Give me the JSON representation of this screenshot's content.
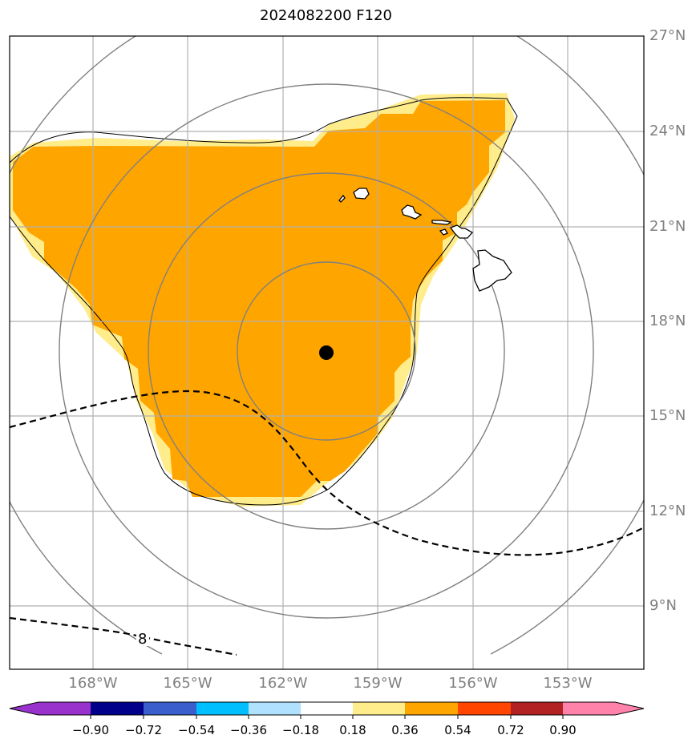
{
  "title": "2024082200 F120",
  "lat_labels": [
    "27°N",
    "24°N",
    "21°N",
    "18°N",
    "15°N",
    "12°N",
    "9°N"
  ],
  "lon_labels": [
    "168°W",
    "165°W",
    "162°W",
    "159°W",
    "156°W",
    "153°W"
  ],
  "contour_label": "8",
  "colorbar": {
    "tick_labels": [
      "−0.90",
      "−0.72",
      "−0.54",
      "−0.36",
      "−0.18",
      "0.18",
      "0.36",
      "0.54",
      "0.72",
      "0.90"
    ],
    "colors": [
      "#9932cc",
      "#00008b",
      "#3a5fcd",
      "#00bfff",
      "#b0e2ff",
      "#ffffff",
      "#ffec8b",
      "#ffa500",
      "#ff4500",
      "#b22222",
      "#ff82ab"
    ]
  },
  "shading": {
    "outer_color": "#ffec8b",
    "inner_color": "#ffa500"
  },
  "center_marker_color": "#000000",
  "ring_color": "#808080"
}
